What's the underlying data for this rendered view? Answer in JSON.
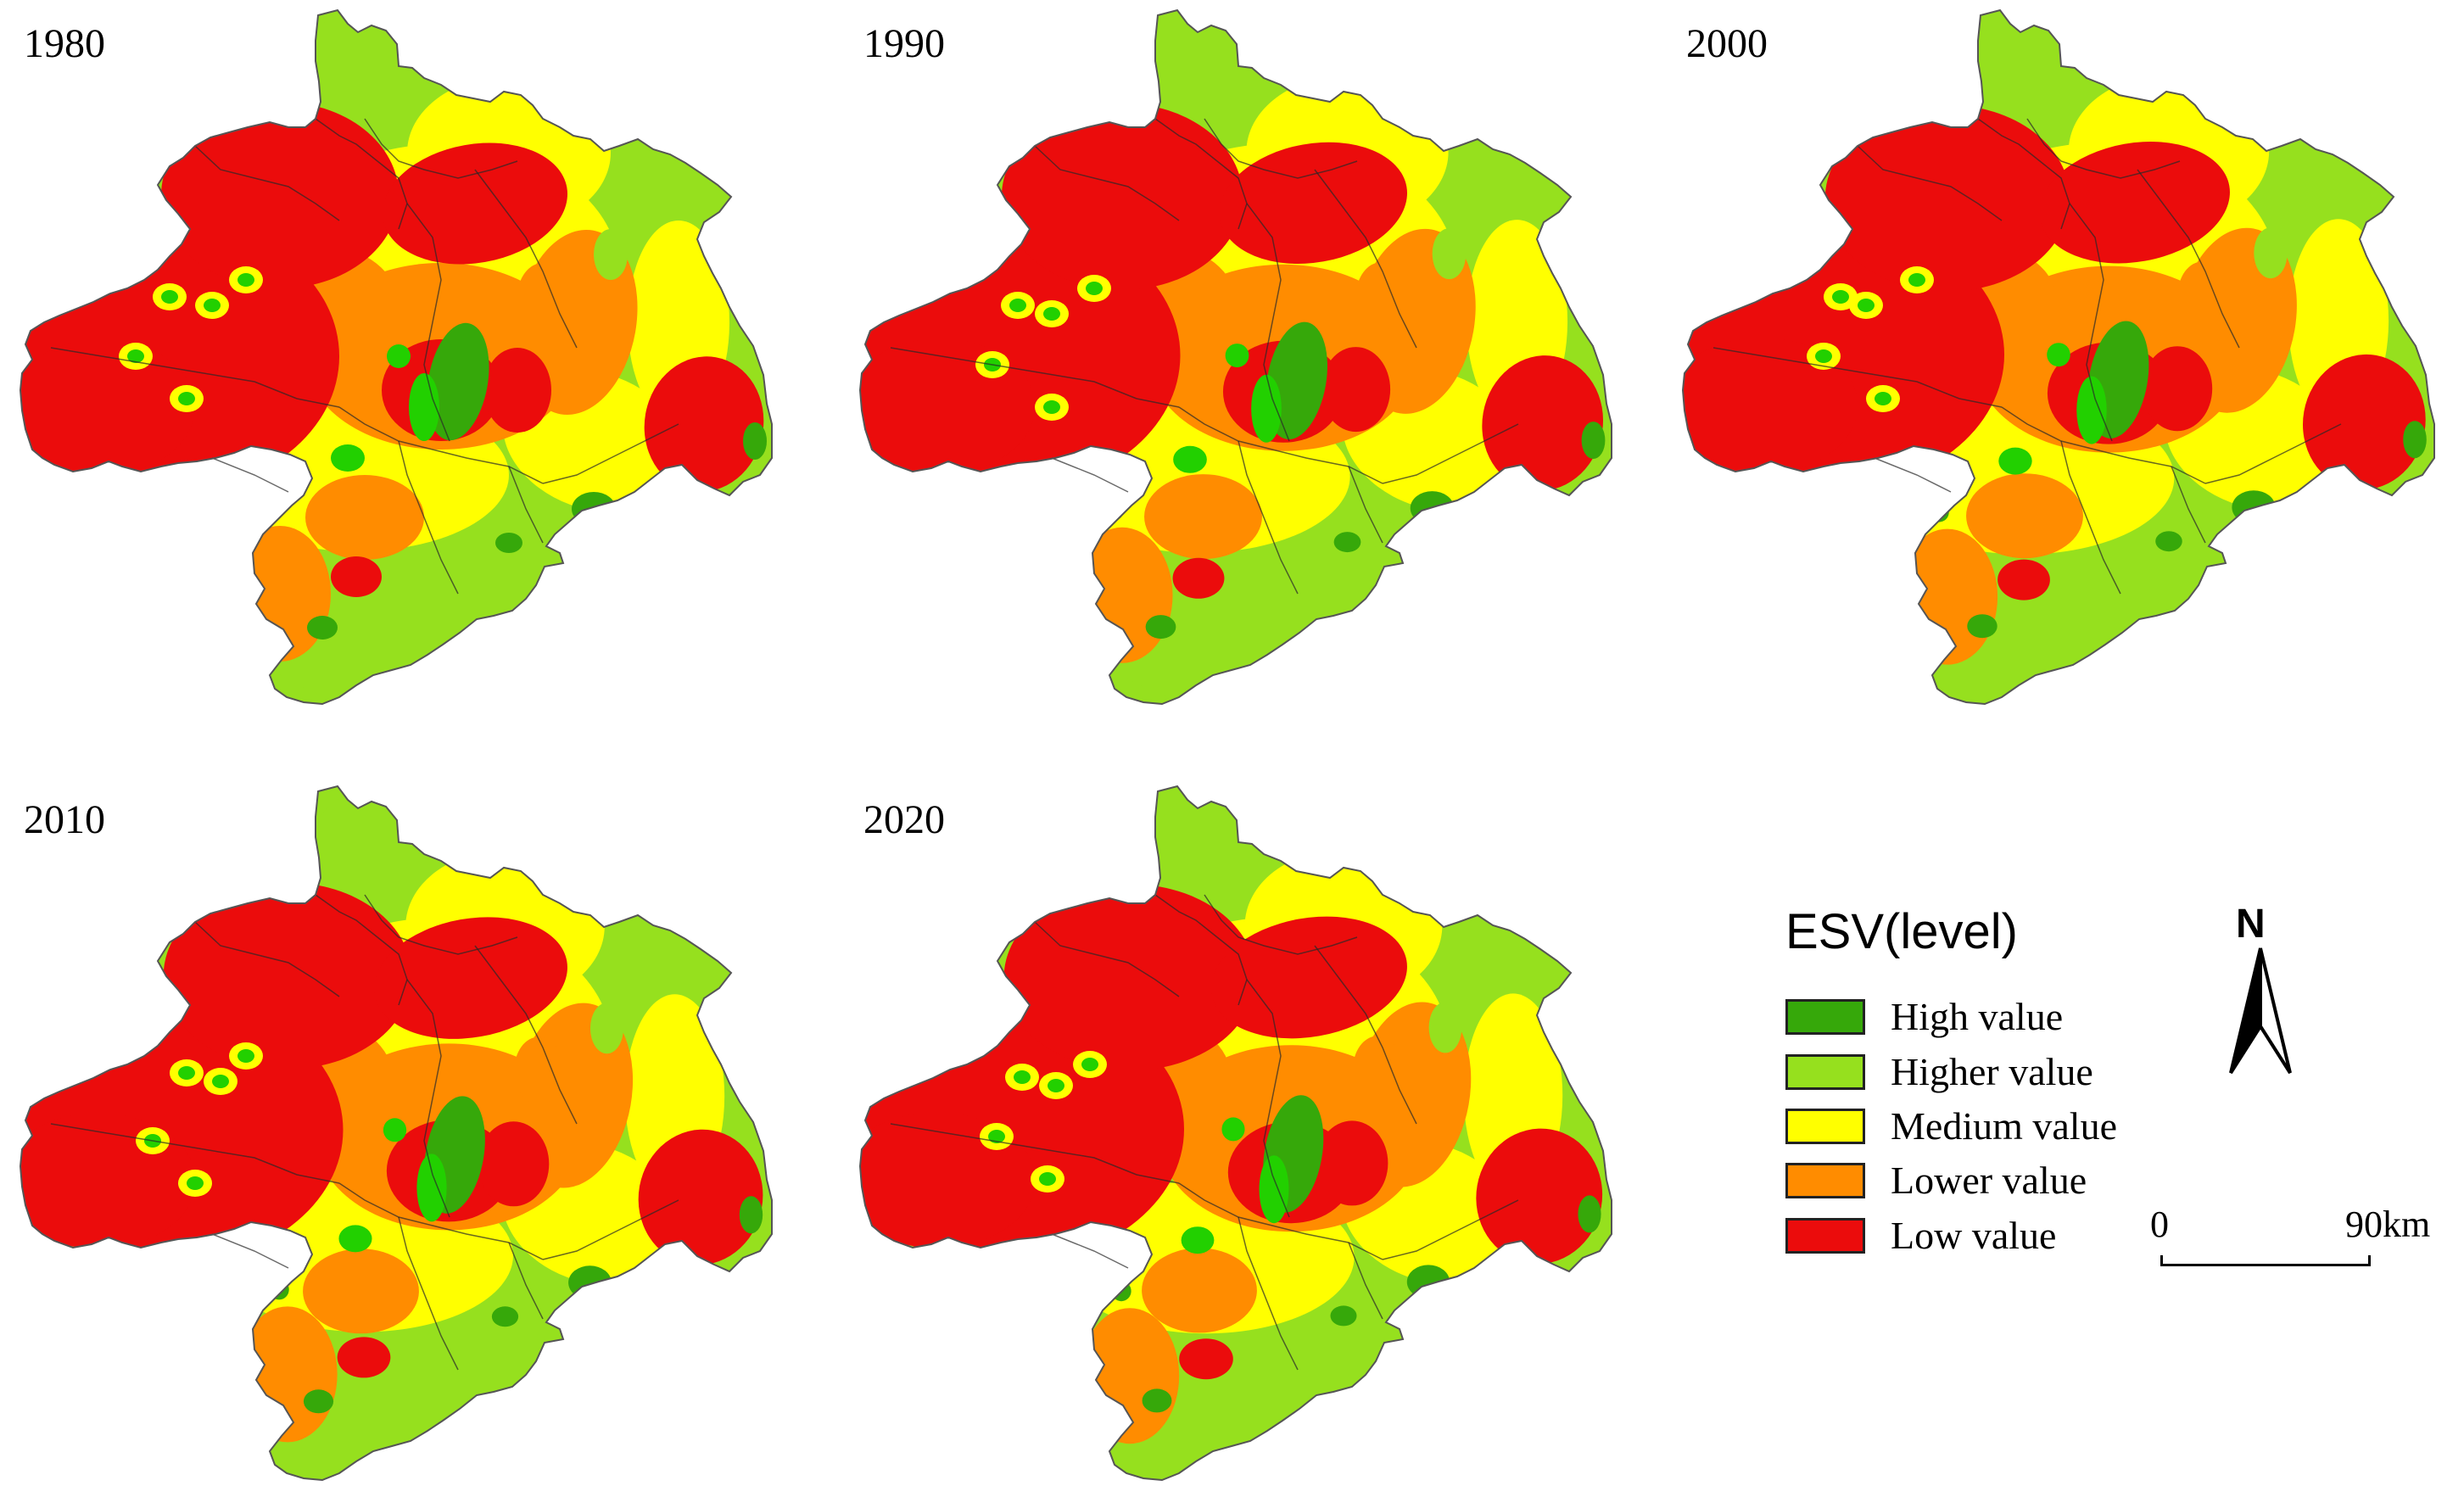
{
  "maps": [
    {
      "year": "1980",
      "variant": 0
    },
    {
      "year": "1990",
      "variant": 1
    },
    {
      "year": "2000",
      "variant": 2
    },
    {
      "year": "2010",
      "variant": 3
    },
    {
      "year": "2020",
      "variant": 4
    }
  ],
  "legend": {
    "title": "ESV(level)",
    "items": [
      {
        "label": "High value",
        "color": "#36a80a"
      },
      {
        "label": "Higher value",
        "color": "#96e01e"
      },
      {
        "label": "Medium value",
        "color": "#ffff00"
      },
      {
        "label": "Lower value",
        "color": "#ff8c00"
      },
      {
        "label": "Low value",
        "color": "#eb0c0c"
      }
    ]
  },
  "north_arrow": {
    "label": "N"
  },
  "scale_bar": {
    "start": "0",
    "end": "90km"
  },
  "palette": {
    "high": "#36a80a",
    "higher": "#96e01e",
    "medium": "#ffff00",
    "lower": "#ff8c00",
    "low": "#eb0c0c",
    "green_spot": "#22d000",
    "boundary": "#2a2a2a"
  }
}
